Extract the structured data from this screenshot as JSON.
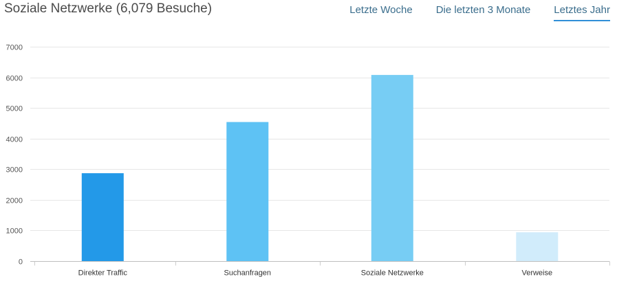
{
  "header": {
    "title": "Soziale Netzwerke (6,079 Besuche)",
    "tabs": [
      {
        "label": "Letzte Woche",
        "active": false
      },
      {
        "label": "Die letzten 3 Monate",
        "active": false
      },
      {
        "label": "Letztes Jahr",
        "active": true
      }
    ]
  },
  "chart_data": {
    "type": "bar",
    "title": "",
    "xlabel": "",
    "ylabel": "",
    "categories": [
      "Direkter Traffic",
      "Suchanfragen",
      "Soziale Netzwerke",
      "Verweise"
    ],
    "values": [
      2870,
      4540,
      6079,
      940
    ],
    "bar_colors": [
      "#2399e8",
      "#5ec2f4",
      "#77cdf4",
      "#d1ecfb"
    ],
    "ylim": [
      0,
      7000
    ],
    "yticks": [
      0,
      1000,
      2000,
      3000,
      4000,
      5000,
      6000,
      7000
    ],
    "grid": true,
    "legend": "none"
  }
}
